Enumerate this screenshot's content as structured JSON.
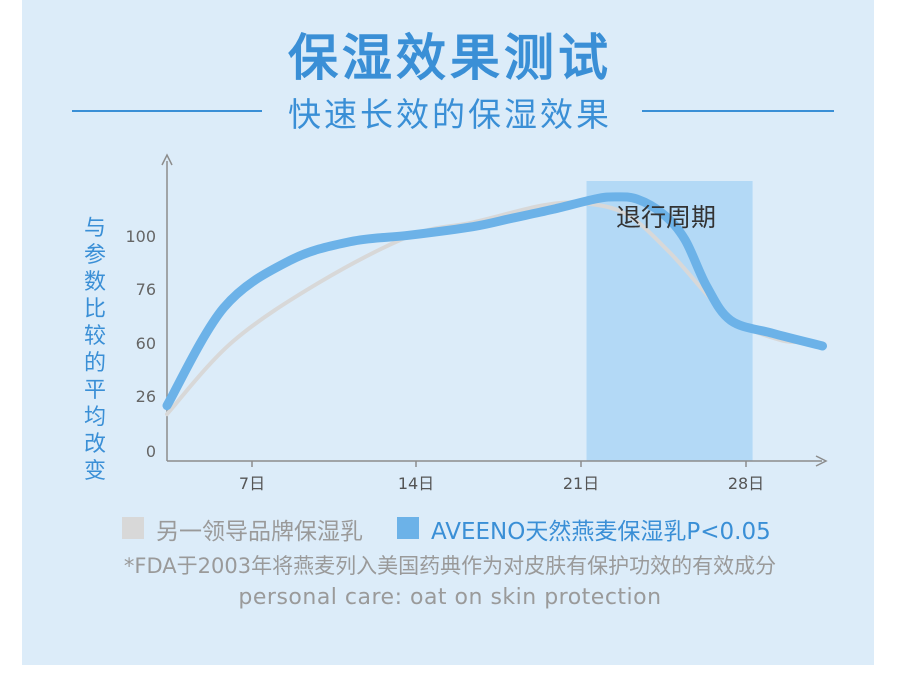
{
  "title": "保湿效果测试",
  "subtitle": "快速长效的保湿效果",
  "colors": {
    "accent": "#3a8fd6",
    "aveeno_line": "#6cb2e8",
    "other_line": "#d8d8d8",
    "highlight": "#b3d9f6"
  },
  "chart_data": {
    "type": "line",
    "ylabel": "与参数比较的平均改变",
    "x_ticks": [
      "7日",
      "14日",
      "21日",
      "28日"
    ],
    "y_ticks": [
      "100",
      "76",
      "60",
      "26",
      "0"
    ],
    "annotation": "退行周期",
    "series": [
      {
        "name": "AVEENO天然燕麦保湿乳P<0.05",
        "x": [
          0,
          2.6,
          5.6,
          8.4,
          11.1,
          14.0,
          15.8,
          17.6,
          19.6,
          20.5,
          21.5,
          22.7,
          23.7,
          24.7,
          25.8,
          27.7,
          30.0
        ],
        "y": [
          26,
          72,
          94,
          103,
          106,
          110,
          114,
          118,
          123,
          124,
          123,
          116,
          104,
          82,
          66,
          60,
          54
        ]
      },
      {
        "name": "另一领导品牌保湿乳",
        "x": [
          0,
          3.0,
          7.0,
          11.2,
          14.0,
          17.2,
          19.0,
          21.0,
          23.0,
          25.7,
          28.0,
          29.5
        ],
        "y": [
          22,
          56,
          84,
          106,
          112,
          120,
          121,
          116,
          98,
          68,
          57,
          56
        ]
      }
    ],
    "regression_period_x": [
      19.2,
      26.8
    ]
  },
  "legend": {
    "other": "另一领导品牌保湿乳",
    "aveeno": "AVEENO天然燕麦保湿乳P<0.05"
  },
  "footnote": "*FDA于2003年将燕麦列入美国药典作为对皮肤有保护功效的有效成分",
  "footnote_en": "personal care: oat on skin protection"
}
